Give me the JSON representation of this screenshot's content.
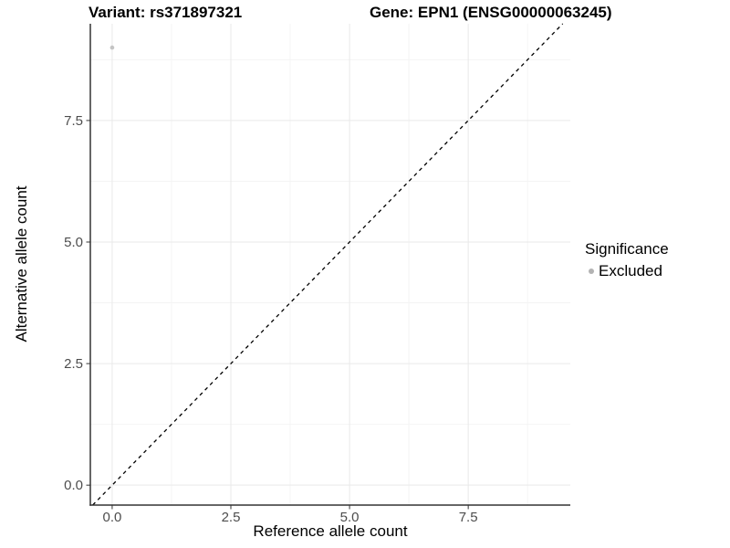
{
  "chart_data": {
    "type": "scatter",
    "title_left": "Variant: rs371897321",
    "title_right": "Gene: EPN1 (ENSG00000063245)",
    "xlabel": "Reference allele count",
    "ylabel": "Alternative allele count",
    "xlim": [
      -0.46,
      9.65
    ],
    "ylim": [
      -0.41,
      9.49
    ],
    "x_ticks": [
      0.0,
      2.5,
      5.0,
      7.5
    ],
    "y_ticks": [
      0.0,
      2.5,
      5.0,
      7.5
    ],
    "x_tick_labels": [
      "0.0",
      "2.5",
      "5.0",
      "7.5"
    ],
    "y_tick_labels": [
      "0.0",
      "2.5",
      "5.0",
      "7.5"
    ],
    "x_minor_ticks": [
      1.25,
      3.75,
      6.25,
      8.75
    ],
    "y_minor_ticks": [
      1.25,
      3.75,
      6.25,
      8.75
    ],
    "grid": "major-and-minor",
    "points": [
      {
        "x": 0,
        "y": 9,
        "series": "Excluded"
      }
    ],
    "reference_line": {
      "type": "identity",
      "slope": 1,
      "intercept": 0,
      "style": "dashed",
      "color": "#000000"
    },
    "legend": {
      "position": "right",
      "title": "Significance",
      "entries": [
        {
          "label": "Excluded",
          "color": "#bdbdbd"
        }
      ]
    },
    "colors": {
      "point": "#c4c4c4",
      "legend_dot": "#b3b3b3",
      "grid_major": "#e9e9e9",
      "grid_minor": "#f4f4f4",
      "axis_line": "#333333",
      "tick_mark": "#333333",
      "tick_label": "#4d4d4d",
      "text": "#000000",
      "background": "#ffffff"
    }
  }
}
